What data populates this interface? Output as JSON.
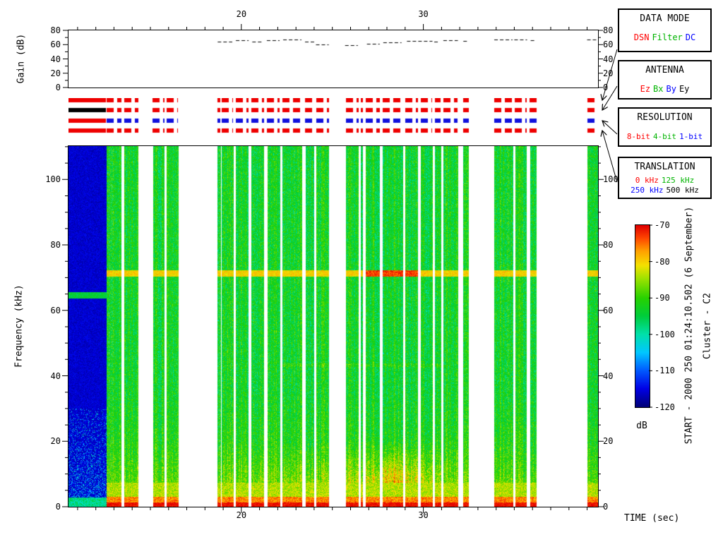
{
  "gain_panel": {
    "ylabel": "Gain (dB)"
  },
  "axes": {
    "time": {
      "label": "TIME (sec)",
      "major_ticks": [
        20,
        30
      ],
      "range": [
        10.5,
        39.6
      ]
    },
    "gain": {
      "ticks": [
        0,
        20,
        40,
        60,
        80
      ],
      "range": [
        0,
        80
      ]
    },
    "frequency": {
      "label": "Frequency (kHz)",
      "ticks": [
        0,
        20,
        40,
        60,
        80,
        100
      ],
      "range": [
        0,
        110.2
      ]
    }
  },
  "colorbar": {
    "label": "dB",
    "ticks": [
      -70,
      -80,
      -90,
      -100,
      -110,
      -120
    ],
    "range": [
      -120,
      -70
    ]
  },
  "side_text": {
    "start_line": "START - 2000 250 01:24:10.502 (6 September)",
    "spacecraft": "Cluster - C2"
  },
  "legend_boxes": [
    {
      "title": "DATA MODE",
      "items": [
        {
          "label": "DSN",
          "color": "#ff0000"
        },
        {
          "label": "Filter",
          "color": "#00b400"
        },
        {
          "label": "DC",
          "color": "#0000ff"
        }
      ]
    },
    {
      "title": "ANTENNA",
      "items": [
        {
          "label": "Ez",
          "color": "#ff0000"
        },
        {
          "label": "Bx",
          "color": "#00b400"
        },
        {
          "label": "By",
          "color": "#0000ff"
        },
        {
          "label": "Ey",
          "color": "#000000"
        }
      ]
    },
    {
      "title": "RESOLUTION",
      "items": [
        {
          "label": "8-bit",
          "color": "#ff0000"
        },
        {
          "label": "4-bit",
          "color": "#00b400"
        },
        {
          "label": "1-bit",
          "color": "#0000ff"
        }
      ]
    },
    {
      "title": "TRANSLATION",
      "items": [
        {
          "label": "0 kHz",
          "color": "#ff0000"
        },
        {
          "label": "125 kHz",
          "color": "#00b400"
        },
        {
          "label": "250 kHz",
          "color": "#0000ff"
        },
        {
          "label": "500 kHz",
          "color": "#000000"
        }
      ]
    }
  ],
  "status_rows": [
    {
      "name": "data-mode",
      "colors": {
        "dark": "#ee0000",
        "data": "#ee0000"
      }
    },
    {
      "name": "antenna",
      "colors": {
        "dark": "#000000",
        "data": "#ee0000"
      }
    },
    {
      "name": "resolution",
      "colors": {
        "dark": "#ee0000",
        "data": "#1111dd"
      }
    },
    {
      "name": "translation",
      "colors": {
        "dark": "#ee0000",
        "data": "#ee0000"
      }
    }
  ],
  "chart_data": [
    {
      "type": "line",
      "name": "receiver-gain",
      "title": "Gain (dB) vs time",
      "x_range": [
        10.5,
        39.6
      ],
      "ylim": [
        0,
        80
      ],
      "line_style": "dashed",
      "segments": [
        {
          "t0": 18.7,
          "t1": 19.5,
          "db": 64
        },
        {
          "t0": 19.7,
          "t1": 20.4,
          "db": 66
        },
        {
          "t0": 20.6,
          "t1": 21.2,
          "db": 64
        },
        {
          "t0": 21.4,
          "t1": 22.1,
          "db": 66
        },
        {
          "t0": 22.3,
          "t1": 23.3,
          "db": 67
        },
        {
          "t0": 23.5,
          "t1": 24.0,
          "db": 64
        },
        {
          "t0": 24.1,
          "t1": 24.8,
          "db": 60
        },
        {
          "t0": 25.7,
          "t1": 26.4,
          "db": 59
        },
        {
          "t0": 26.9,
          "t1": 27.6,
          "db": 61
        },
        {
          "t0": 27.8,
          "t1": 28.8,
          "db": 63
        },
        {
          "t0": 29.1,
          "t1": 30.5,
          "db": 65
        },
        {
          "t0": 30.6,
          "t1": 30.9,
          "db": 64
        },
        {
          "t0": 31.1,
          "t1": 31.9,
          "db": 66
        },
        {
          "t0": 32.2,
          "t1": 32.5,
          "db": 65
        },
        {
          "t0": 33.9,
          "t1": 34.9,
          "db": 67
        },
        {
          "t0": 35.0,
          "t1": 35.7,
          "db": 67
        },
        {
          "t0": 35.9,
          "t1": 36.2,
          "db": 66
        },
        {
          "t0": 39.0,
          "t1": 39.5,
          "db": 67
        }
      ]
    },
    {
      "type": "heatmap",
      "name": "wbd-spectrogram",
      "xlabel": "TIME (sec)",
      "ylabel": "Frequency (kHz)",
      "x_range": [
        10.5,
        39.6
      ],
      "ylim": [
        0,
        110.2
      ],
      "value_range": [
        -120,
        -70
      ],
      "value_units": "dB",
      "colormap": "jet",
      "features": {
        "persistent_line_kHz": 71.5,
        "dark_region_line_kHz": 65,
        "lowfreq_hot_band_kHz": [
          0,
          8
        ],
        "gaps_are_white": true
      },
      "segments": [
        {
          "x0": 0.0,
          "x1": 0.0707,
          "kind": "dark"
        },
        {
          "x0": 0.072,
          "x1": 0.1,
          "kind": "data",
          "hot": 0.15
        },
        {
          "x0": 0.1053,
          "x1": 0.132,
          "kind": "data",
          "hot": 0.15
        },
        {
          "x0": 0.1587,
          "x1": 0.1813,
          "kind": "data",
          "hot": 0.2
        },
        {
          "x0": 0.1853,
          "x1": 0.2067,
          "kind": "data",
          "hot": 0.2
        },
        {
          "x0": 0.2813,
          "x1": 0.2867,
          "kind": "data",
          "hot": 0.2
        },
        {
          "x0": 0.2893,
          "x1": 0.3107,
          "kind": "data",
          "hot": 0.25
        },
        {
          "x0": 0.316,
          "x1": 0.34,
          "kind": "data",
          "hot": 0.25
        },
        {
          "x0": 0.3453,
          "x1": 0.3693,
          "kind": "data",
          "hot": 0.3
        },
        {
          "x0": 0.3747,
          "x1": 0.3987,
          "kind": "data",
          "hot": 0.3
        },
        {
          "x0": 0.404,
          "x1": 0.4413,
          "kind": "data",
          "hot": 0.35
        },
        {
          "x0": 0.4467,
          "x1": 0.4627,
          "kind": "data",
          "hot": 0.35
        },
        {
          "x0": 0.468,
          "x1": 0.492,
          "kind": "data",
          "hot": 0.4
        },
        {
          "x0": 0.524,
          "x1": 0.548,
          "kind": "data",
          "hot": 0.55
        },
        {
          "x0": 0.552,
          "x1": 0.556,
          "kind": "data",
          "hot": 0.5
        },
        {
          "x0": 0.5613,
          "x1": 0.588,
          "kind": "data",
          "hot": 0.7
        },
        {
          "x0": 0.5933,
          "x1": 0.6307,
          "kind": "data",
          "hot": 1.0
        },
        {
          "x0": 0.636,
          "x1": 0.66,
          "kind": "data",
          "hot": 0.8
        },
        {
          "x0": 0.6653,
          "x1": 0.6867,
          "kind": "data",
          "hot": 0.6
        },
        {
          "x0": 0.692,
          "x1": 0.7027,
          "kind": "data",
          "hot": 0.4
        },
        {
          "x0": 0.708,
          "x1": 0.7347,
          "kind": "data",
          "hot": 0.3
        },
        {
          "x0": 0.7453,
          "x1": 0.756,
          "kind": "data",
          "hot": 0.2
        },
        {
          "x0": 0.804,
          "x1": 0.8387,
          "kind": "data",
          "hot": 0.2
        },
        {
          "x0": 0.8427,
          "x1": 0.8653,
          "kind": "data",
          "hot": 0.15
        },
        {
          "x0": 0.8707,
          "x1": 0.884,
          "kind": "data",
          "hot": 0.15
        },
        {
          "x0": 0.98,
          "x1": 1.0,
          "kind": "data",
          "hot": 0.15
        }
      ]
    }
  ]
}
